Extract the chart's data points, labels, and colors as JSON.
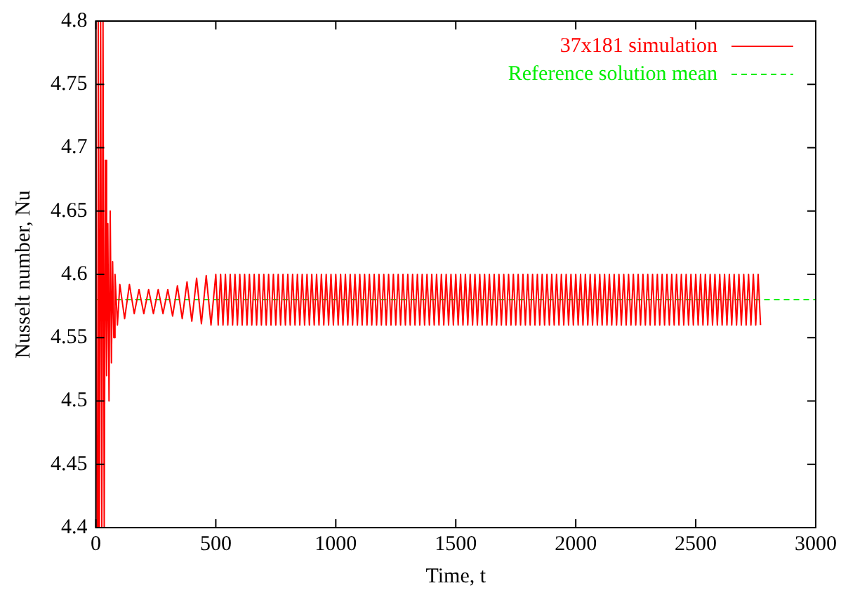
{
  "chart_data": {
    "type": "line",
    "xlabel": "Time, t",
    "ylabel": "Nusselt number, Nu",
    "xlim": [
      0,
      3000
    ],
    "xticks": [
      0,
      500,
      1000,
      1500,
      2000,
      2500,
      3000
    ],
    "ylim": [
      4.4,
      4.8
    ],
    "yticks": [
      4.4,
      4.45,
      4.5,
      4.55,
      4.6,
      4.65,
      4.7,
      4.75,
      4.8
    ],
    "legend": "top right",
    "marker": "none",
    "series": [
      {
        "name": "37x181 simulation",
        "color": "#ff0000",
        "line_style": "solid",
        "x": [
          0,
          5,
          10,
          15,
          20,
          25,
          30,
          35,
          40,
          45,
          50,
          55,
          60,
          65,
          70,
          75,
          80,
          90,
          100,
          120,
          140,
          160,
          180,
          200,
          220,
          240,
          260,
          280,
          300,
          320,
          340,
          360,
          380,
          400,
          420,
          440,
          460,
          480,
          500,
          510,
          520,
          530,
          540,
          550,
          560,
          570,
          580,
          590,
          600,
          610,
          620,
          630,
          640,
          650,
          660,
          670,
          680,
          690,
          700,
          710,
          720,
          730,
          740,
          750,
          760,
          770,
          780,
          790,
          800,
          810,
          820,
          830,
          840,
          850,
          860,
          870,
          880,
          890,
          900,
          910,
          920,
          930,
          940,
          950,
          960,
          970,
          980,
          990,
          1000,
          1010,
          1020,
          1030,
          1040,
          1050,
          1060,
          1070,
          1080,
          1090,
          1100,
          1110,
          1120,
          1130,
          1140,
          1150,
          1160,
          1170,
          1180,
          1190,
          1200,
          1210,
          1220,
          1230,
          1240,
          1250,
          1260,
          1270,
          1280,
          1290,
          1300,
          1310,
          1320,
          1330,
          1340,
          1350,
          1360,
          1370,
          1380,
          1390,
          1400,
          1410,
          1420,
          1430,
          1440,
          1450,
          1460,
          1470,
          1480,
          1490,
          1500,
          1510,
          1520,
          1530,
          1540,
          1550,
          1560,
          1570,
          1580,
          1590,
          1600,
          1610,
          1620,
          1630,
          1640,
          1650,
          1660,
          1670,
          1680,
          1690,
          1700,
          1710,
          1720,
          1730,
          1740,
          1750,
          1760,
          1770,
          1780,
          1790,
          1800,
          1810,
          1820,
          1830,
          1840,
          1850,
          1860,
          1870,
          1880,
          1890,
          1900,
          1910,
          1920,
          1930,
          1940,
          1950,
          1960,
          1970,
          1980,
          1990,
          2000,
          2010,
          2020,
          2030,
          2040,
          2050,
          2060,
          2070,
          2080,
          2090,
          2100,
          2110,
          2120,
          2130,
          2140,
          2150,
          2160,
          2170,
          2180,
          2190,
          2200,
          2210,
          2220,
          2230,
          2240,
          2250,
          2260,
          2270,
          2280,
          2290,
          2300,
          2310,
          2320,
          2330,
          2340,
          2350,
          2360,
          2370,
          2380,
          2390,
          2400,
          2410,
          2420,
          2430,
          2440,
          2450,
          2460,
          2470,
          2480,
          2490,
          2500,
          2510,
          2520,
          2530,
          2540,
          2550,
          2560,
          2570,
          2580,
          2590,
          2600,
          2610,
          2620,
          2630,
          2640,
          2650,
          2660,
          2670,
          2680,
          2690,
          2700,
          2710,
          2720,
          2730,
          2740,
          2750,
          2760,
          2770
        ],
        "values": [
          4.8,
          4.4,
          4.8,
          4.4,
          4.8,
          4.4,
          4.8,
          4.4,
          4.69,
          4.52,
          4.64,
          4.5,
          4.65,
          4.53,
          4.61,
          4.55,
          4.6,
          4.56,
          4.592,
          4.565,
          4.592,
          4.569,
          4.588,
          4.569,
          4.588,
          4.569,
          4.588,
          4.569,
          4.588,
          4.567,
          4.591,
          4.565,
          4.594,
          4.563,
          4.597,
          4.561,
          4.599,
          4.56,
          4.6,
          4.56,
          4.6,
          4.56,
          4.6,
          4.56,
          4.6,
          4.56,
          4.6,
          4.56,
          4.6,
          4.56,
          4.6,
          4.56,
          4.6,
          4.56,
          4.6,
          4.56,
          4.6,
          4.56,
          4.6,
          4.56,
          4.6,
          4.56,
          4.6,
          4.56,
          4.6,
          4.56,
          4.6,
          4.56,
          4.6,
          4.56,
          4.6,
          4.56,
          4.6,
          4.56,
          4.6,
          4.56,
          4.6,
          4.56,
          4.6,
          4.56,
          4.6,
          4.56,
          4.6,
          4.56,
          4.6,
          4.56,
          4.6,
          4.56,
          4.6,
          4.56,
          4.6,
          4.56,
          4.6,
          4.56,
          4.6,
          4.56,
          4.6,
          4.56,
          4.6,
          4.56,
          4.6,
          4.56,
          4.6,
          4.56,
          4.6,
          4.56,
          4.6,
          4.56,
          4.6,
          4.56,
          4.6,
          4.56,
          4.6,
          4.56,
          4.6,
          4.56,
          4.6,
          4.56,
          4.6,
          4.56,
          4.6,
          4.56,
          4.6,
          4.56,
          4.6,
          4.56,
          4.6,
          4.56,
          4.6,
          4.56,
          4.6,
          4.56,
          4.6,
          4.56,
          4.6,
          4.56,
          4.6,
          4.56,
          4.6,
          4.56,
          4.6,
          4.56,
          4.6,
          4.56,
          4.6,
          4.56,
          4.6,
          4.56,
          4.6,
          4.56,
          4.6,
          4.56,
          4.6,
          4.56,
          4.6,
          4.56,
          4.6,
          4.56,
          4.6,
          4.56,
          4.6,
          4.56,
          4.6,
          4.56,
          4.6,
          4.56,
          4.6,
          4.56,
          4.6,
          4.56,
          4.6,
          4.56,
          4.6,
          4.56,
          4.6,
          4.56,
          4.6,
          4.56,
          4.6,
          4.56,
          4.6,
          4.56,
          4.6,
          4.56,
          4.6,
          4.56,
          4.6,
          4.56,
          4.6,
          4.56,
          4.6,
          4.56,
          4.6,
          4.56,
          4.6,
          4.56,
          4.6,
          4.56,
          4.6,
          4.56,
          4.6,
          4.56,
          4.6,
          4.56,
          4.6,
          4.56,
          4.6,
          4.56,
          4.6,
          4.56,
          4.6,
          4.56,
          4.6,
          4.56,
          4.6,
          4.56,
          4.6,
          4.56,
          4.6,
          4.56,
          4.6,
          4.56,
          4.6,
          4.56,
          4.6,
          4.56,
          4.6,
          4.56,
          4.6,
          4.56,
          4.6,
          4.56,
          4.6,
          4.56,
          4.6,
          4.56,
          4.6,
          4.56,
          4.6,
          4.56,
          4.6,
          4.56,
          4.6,
          4.56,
          4.6,
          4.56,
          4.6,
          4.56,
          4.6,
          4.56,
          4.6,
          4.56,
          4.6,
          4.56,
          4.6,
          4.56,
          4.6,
          4.56,
          4.6,
          4.56,
          4.6,
          4.56,
          4.6,
          4.56,
          4.6,
          4.56
        ]
      },
      {
        "name": "Reference solution mean",
        "color": "#00ee00",
        "line_style": "dashed",
        "x": [
          0,
          3000
        ],
        "values": [
          4.58,
          4.58
        ]
      }
    ]
  }
}
